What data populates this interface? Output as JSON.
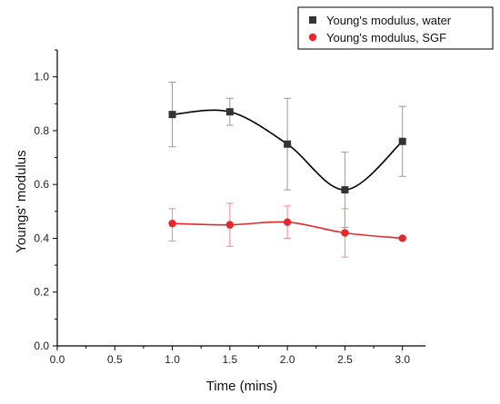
{
  "chart_data": {
    "type": "scatter",
    "xlabel": "Time (mins)",
    "ylabel": "Youngs' modulus",
    "xlim": [
      0.0,
      3.2
    ],
    "ylim": [
      0.0,
      1.1
    ],
    "xticks": [
      "0.0",
      "0.5",
      "1.0",
      "1.5",
      "2.0",
      "2.5",
      "3.0"
    ],
    "yticks": [
      "0.0",
      "0.2",
      "0.4",
      "0.6",
      "0.8",
      "1.0"
    ],
    "grid": false,
    "legend_position": "top-right",
    "series": [
      {
        "name": "Young's modulus, water",
        "marker": "square",
        "color": "#333333",
        "x": [
          1.0,
          1.5,
          2.0,
          2.5,
          3.0
        ],
        "y": [
          0.86,
          0.87,
          0.75,
          0.58,
          0.76
        ],
        "err_low": [
          0.74,
          0.82,
          0.58,
          0.44,
          0.63
        ],
        "err_high": [
          0.98,
          0.92,
          0.92,
          0.72,
          0.89
        ]
      },
      {
        "name": "Young's modulus, SGF",
        "marker": "circle",
        "color": "#e8272b",
        "x": [
          1.0,
          1.5,
          2.0,
          2.5,
          3.0
        ],
        "y": [
          0.455,
          0.45,
          0.46,
          0.42,
          0.4
        ],
        "err_low": [
          0.39,
          0.37,
          0.4,
          0.33,
          0.4
        ],
        "err_high": [
          0.51,
          0.53,
          0.52,
          0.51,
          0.4
        ]
      }
    ]
  }
}
